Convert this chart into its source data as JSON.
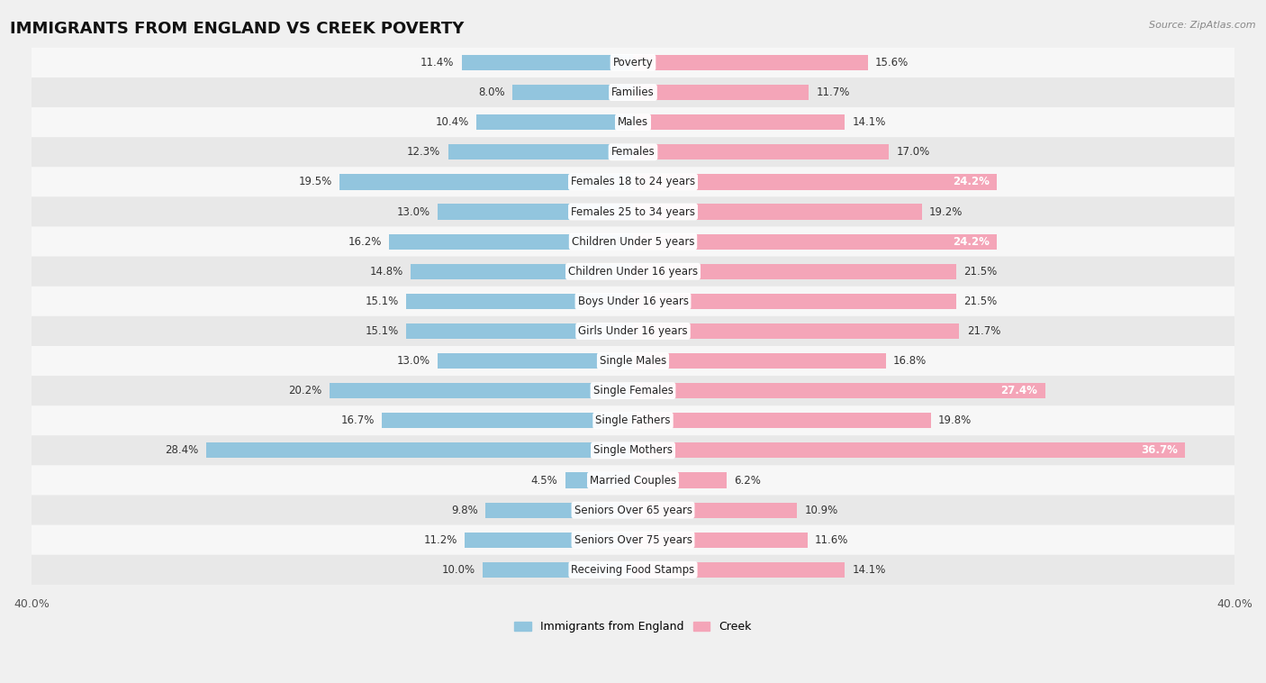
{
  "title": "IMMIGRANTS FROM ENGLAND VS CREEK POVERTY",
  "source": "Source: ZipAtlas.com",
  "categories": [
    "Poverty",
    "Families",
    "Males",
    "Females",
    "Females 18 to 24 years",
    "Females 25 to 34 years",
    "Children Under 5 years",
    "Children Under 16 years",
    "Boys Under 16 years",
    "Girls Under 16 years",
    "Single Males",
    "Single Females",
    "Single Fathers",
    "Single Mothers",
    "Married Couples",
    "Seniors Over 65 years",
    "Seniors Over 75 years",
    "Receiving Food Stamps"
  ],
  "england_values": [
    11.4,
    8.0,
    10.4,
    12.3,
    19.5,
    13.0,
    16.2,
    14.8,
    15.1,
    15.1,
    13.0,
    20.2,
    16.7,
    28.4,
    4.5,
    9.8,
    11.2,
    10.0
  ],
  "creek_values": [
    15.6,
    11.7,
    14.1,
    17.0,
    24.2,
    19.2,
    24.2,
    21.5,
    21.5,
    21.7,
    16.8,
    27.4,
    19.8,
    36.7,
    6.2,
    10.9,
    11.6,
    14.1
  ],
  "england_color": "#92c5de",
  "creek_color": "#f4a5b8",
  "england_label": "Immigrants from England",
  "creek_label": "Creek",
  "x_max": 40.0,
  "bg_color": "#f0f0f0",
  "row_colors": [
    "#f7f7f7",
    "#e8e8e8"
  ],
  "title_fontsize": 13,
  "label_fontsize": 8.5,
  "value_fontsize": 8.5,
  "axis_tick_fontsize": 9
}
